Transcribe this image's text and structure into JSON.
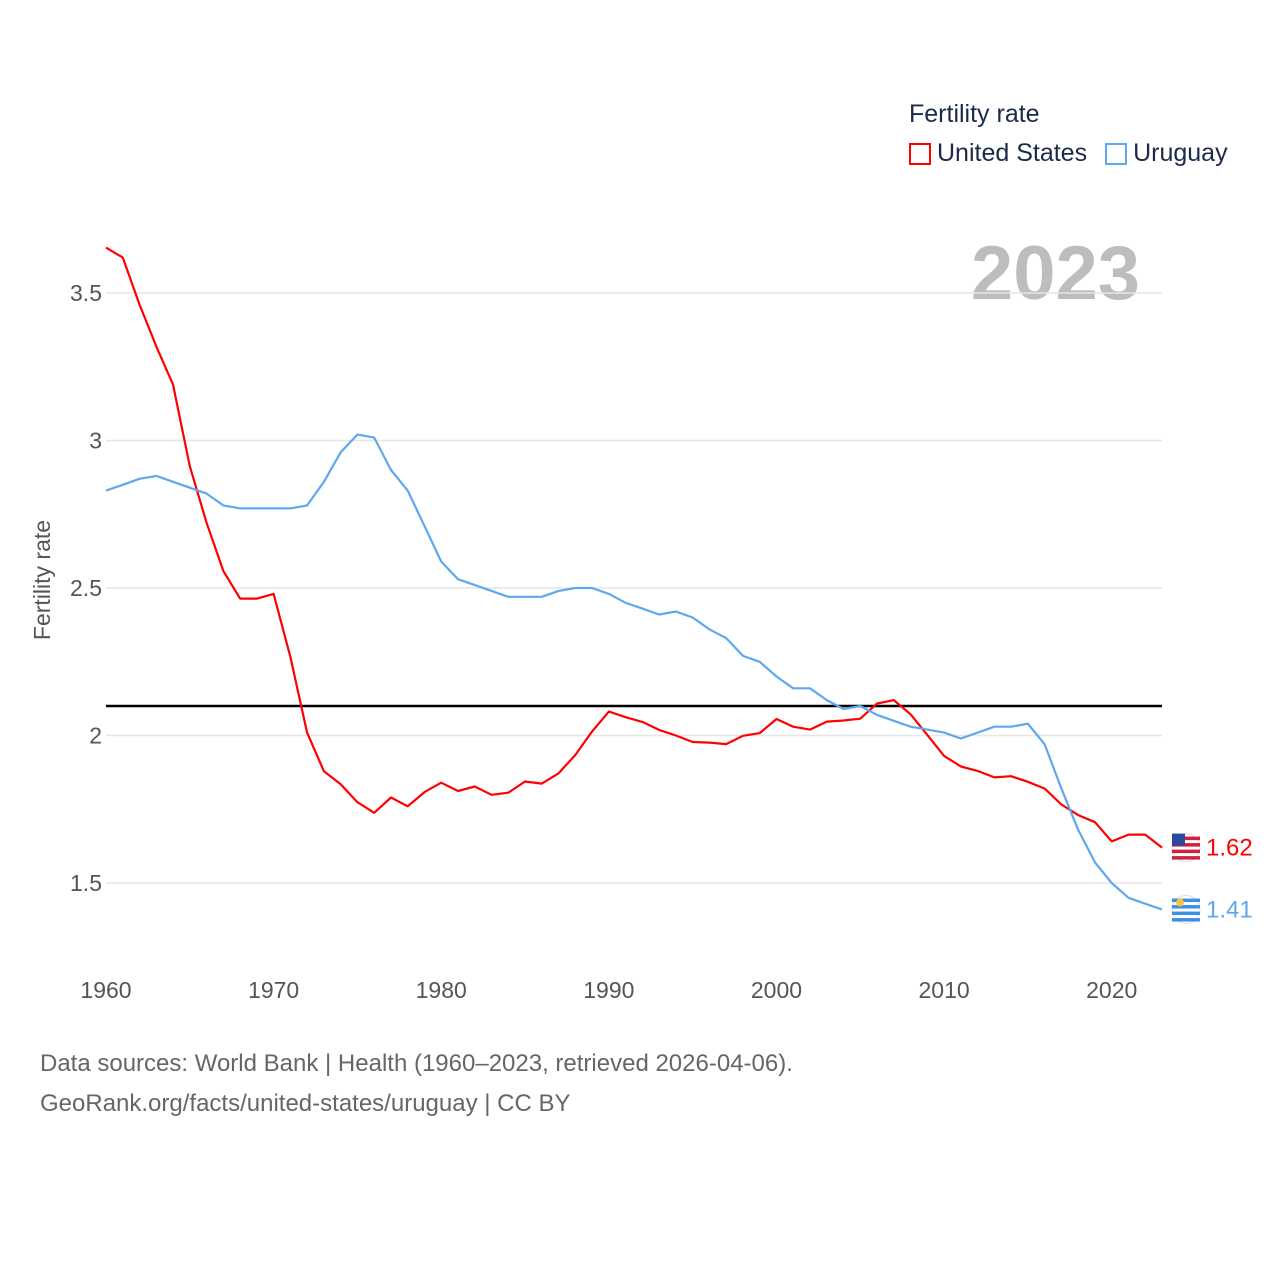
{
  "legend": {
    "title": "Fertility rate",
    "items": [
      {
        "label": "United States"
      },
      {
        "label": "Uruguay"
      }
    ]
  },
  "year_label": "2023",
  "footer": {
    "line1": "Data sources: World Bank | Health (1960–2023, retrieved 2026-04-06).",
    "line2": "GeoRank.org/facts/united-states/uruguay | CC BY"
  },
  "chart_data": {
    "type": "line",
    "title": "Fertility rate",
    "xlabel": "",
    "ylabel": "Fertility rate",
    "xlim": [
      1960,
      2023
    ],
    "ylim": [
      1.3,
      3.7
    ],
    "grid": true,
    "legend_position": "top-right",
    "x_ticks": [
      "1960",
      "1970",
      "1980",
      "1990",
      "2000",
      "2010",
      "2020"
    ],
    "y_ticks": [
      "1.5",
      "2",
      "2.5",
      "3",
      "3.5"
    ],
    "reference_line": 2.1,
    "x": [
      1960,
      1961,
      1962,
      1963,
      1964,
      1965,
      1966,
      1967,
      1968,
      1969,
      1970,
      1971,
      1972,
      1973,
      1974,
      1975,
      1976,
      1977,
      1978,
      1979,
      1980,
      1981,
      1982,
      1983,
      1984,
      1985,
      1986,
      1987,
      1988,
      1989,
      1990,
      1991,
      1992,
      1993,
      1994,
      1995,
      1996,
      1997,
      1998,
      1999,
      2000,
      2001,
      2002,
      2003,
      2004,
      2005,
      2006,
      2007,
      2008,
      2009,
      2010,
      2011,
      2012,
      2013,
      2014,
      2015,
      2016,
      2017,
      2018,
      2019,
      2020,
      2021,
      2022,
      2023
    ],
    "series": [
      {
        "name": "United States",
        "color": "#ff0000",
        "end_label": "1.62",
        "values": [
          3.654,
          3.62,
          3.461,
          3.319,
          3.19,
          2.913,
          2.721,
          2.558,
          2.464,
          2.464,
          2.48,
          2.266,
          2.01,
          1.879,
          1.835,
          1.774,
          1.738,
          1.79,
          1.76,
          1.808,
          1.84,
          1.812,
          1.827,
          1.799,
          1.806,
          1.844,
          1.837,
          1.872,
          1.934,
          2.014,
          2.081,
          2.062,
          2.046,
          2.019,
          2.0,
          1.978,
          1.976,
          1.971,
          1.999,
          2.008,
          2.056,
          2.03,
          2.02,
          2.047,
          2.051,
          2.057,
          2.108,
          2.12,
          2.072,
          2.002,
          1.931,
          1.895,
          1.88,
          1.858,
          1.862,
          1.843,
          1.82,
          1.766,
          1.73,
          1.706,
          1.641,
          1.664,
          1.664,
          1.62
        ]
      },
      {
        "name": "Uruguay",
        "color": "#5da8ee",
        "end_label": "1.41",
        "values": [
          2.83,
          2.85,
          2.87,
          2.88,
          2.86,
          2.84,
          2.82,
          2.78,
          2.77,
          2.77,
          2.77,
          2.77,
          2.78,
          2.86,
          2.96,
          3.02,
          3.01,
          2.9,
          2.83,
          2.71,
          2.59,
          2.53,
          2.51,
          2.49,
          2.47,
          2.47,
          2.47,
          2.49,
          2.5,
          2.5,
          2.48,
          2.45,
          2.43,
          2.41,
          2.42,
          2.4,
          2.36,
          2.33,
          2.27,
          2.25,
          2.2,
          2.16,
          2.16,
          2.12,
          2.09,
          2.1,
          2.07,
          2.05,
          2.03,
          2.02,
          2.01,
          1.99,
          2.01,
          2.03,
          2.03,
          2.04,
          1.97,
          1.82,
          1.68,
          1.57,
          1.5,
          1.45,
          1.43,
          1.41
        ]
      }
    ]
  }
}
